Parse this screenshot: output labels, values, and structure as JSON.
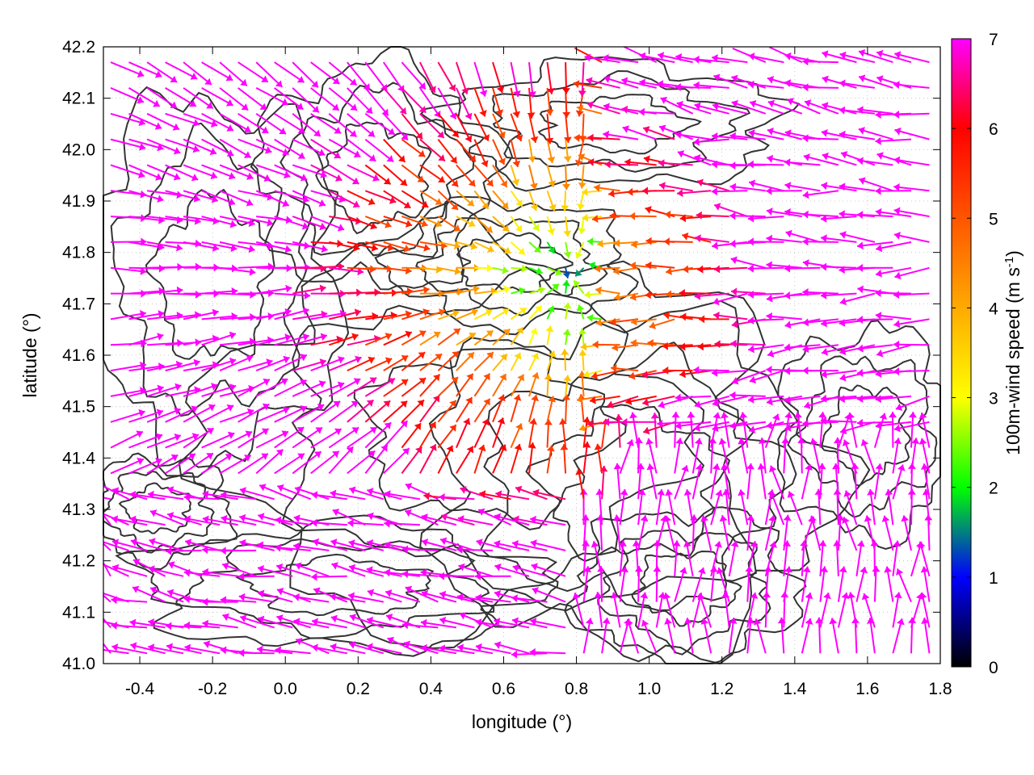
{
  "chart_data": {
    "type": "vector-field",
    "xlabel": "longitude (°)",
    "ylabel": "latitude (°)",
    "xlim": [
      -0.5,
      1.8
    ],
    "ylim": [
      41.0,
      42.2
    ],
    "xticks": [
      "-0.4",
      "-0.2",
      "0.0",
      "0.2",
      "0.4",
      "0.6",
      "0.8",
      "1.0",
      "1.2",
      "1.4",
      "1.6",
      "1.8"
    ],
    "xtick_values": [
      -0.4,
      -0.2,
      0.0,
      0.2,
      0.4,
      0.6,
      0.8,
      1.0,
      1.2,
      1.4,
      1.6,
      1.8
    ],
    "yticks": [
      "41.0",
      "41.1",
      "41.2",
      "41.3",
      "41.4",
      "41.5",
      "41.6",
      "41.7",
      "41.8",
      "41.9",
      "42.0",
      "42.1",
      "42.2"
    ],
    "ytick_values": [
      41.0,
      41.1,
      41.2,
      41.3,
      41.4,
      41.5,
      41.6,
      41.7,
      41.8,
      41.9,
      42.0,
      42.1,
      42.2
    ],
    "grid": true,
    "colorbar": {
      "label_main": "100m-wind speed (m s",
      "label_sup": "-1",
      "label_close": ")",
      "range": [
        0,
        7
      ],
      "ticks": [
        "0",
        "1",
        "2",
        "3",
        "4",
        "5",
        "6",
        "7"
      ],
      "tick_values": [
        0,
        1,
        2,
        3,
        4,
        5,
        6,
        7
      ],
      "colors": [
        "#000000",
        "#0000ff",
        "#00ff00",
        "#ffff00",
        "#ffaa00",
        "#ff5500",
        "#ff0000",
        "#ff00ff"
      ]
    },
    "field": {
      "description_of_pattern": "convergence toward a calm zone near (0.75, 41.75); strong easterly/westerly inflow",
      "calm_center": [
        0.78,
        41.75
      ],
      "grid_dx": 0.05,
      "grid_dy": 0.05,
      "max_speed": 7
    },
    "contour_color": "#333333",
    "arrow_colors_note": "arrow color encodes speed in m s-1"
  }
}
